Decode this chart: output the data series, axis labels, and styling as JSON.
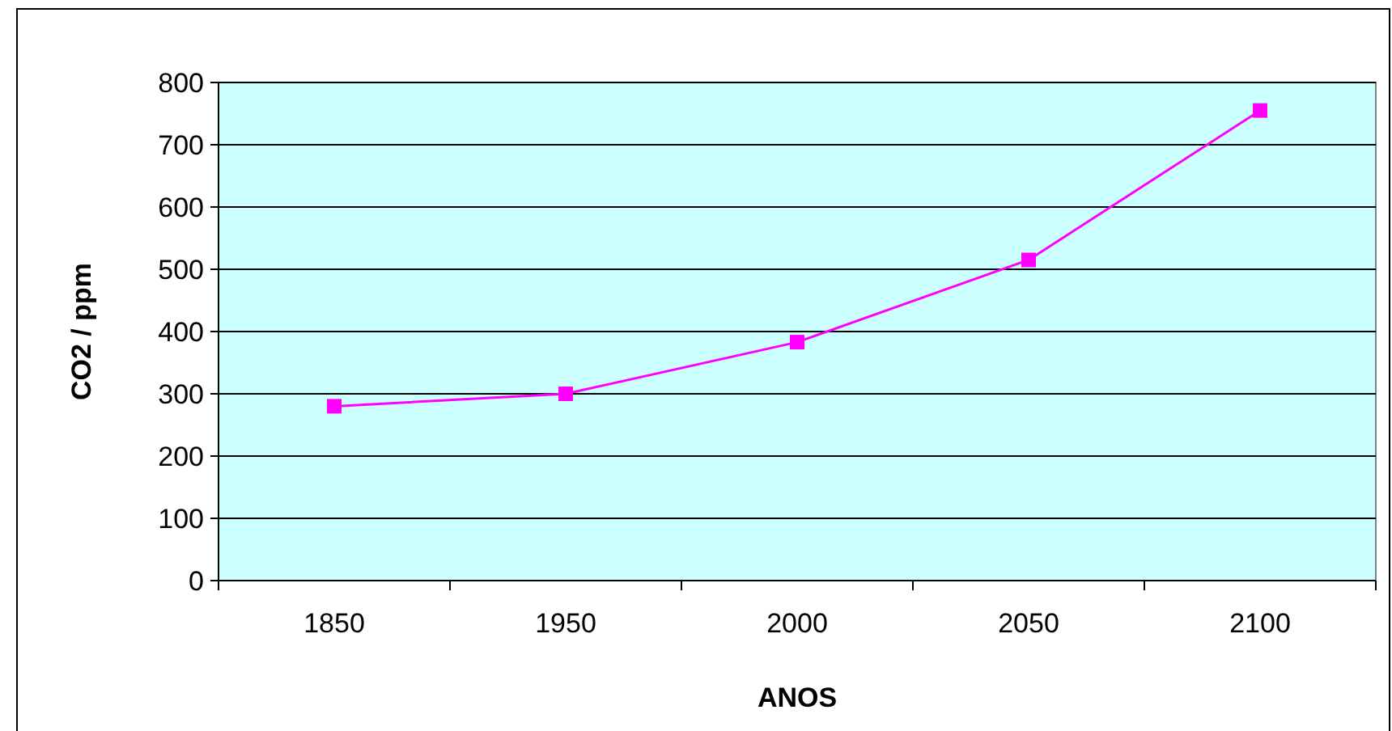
{
  "chart_data": {
    "type": "line",
    "xlabel": "ANOS",
    "ylabel": "CO2 / ppm",
    "categories": [
      "1850",
      "1950",
      "2000",
      "2050",
      "2100"
    ],
    "series": [
      {
        "color": "#ff00ff",
        "values": [
          280,
          300,
          383,
          515,
          755
        ]
      }
    ],
    "ylim": [
      0,
      800
    ],
    "yticks": [
      0,
      100,
      200,
      300,
      400,
      500,
      600,
      700,
      800
    ],
    "grid": "y",
    "marker": "square",
    "line_style": "solid"
  }
}
